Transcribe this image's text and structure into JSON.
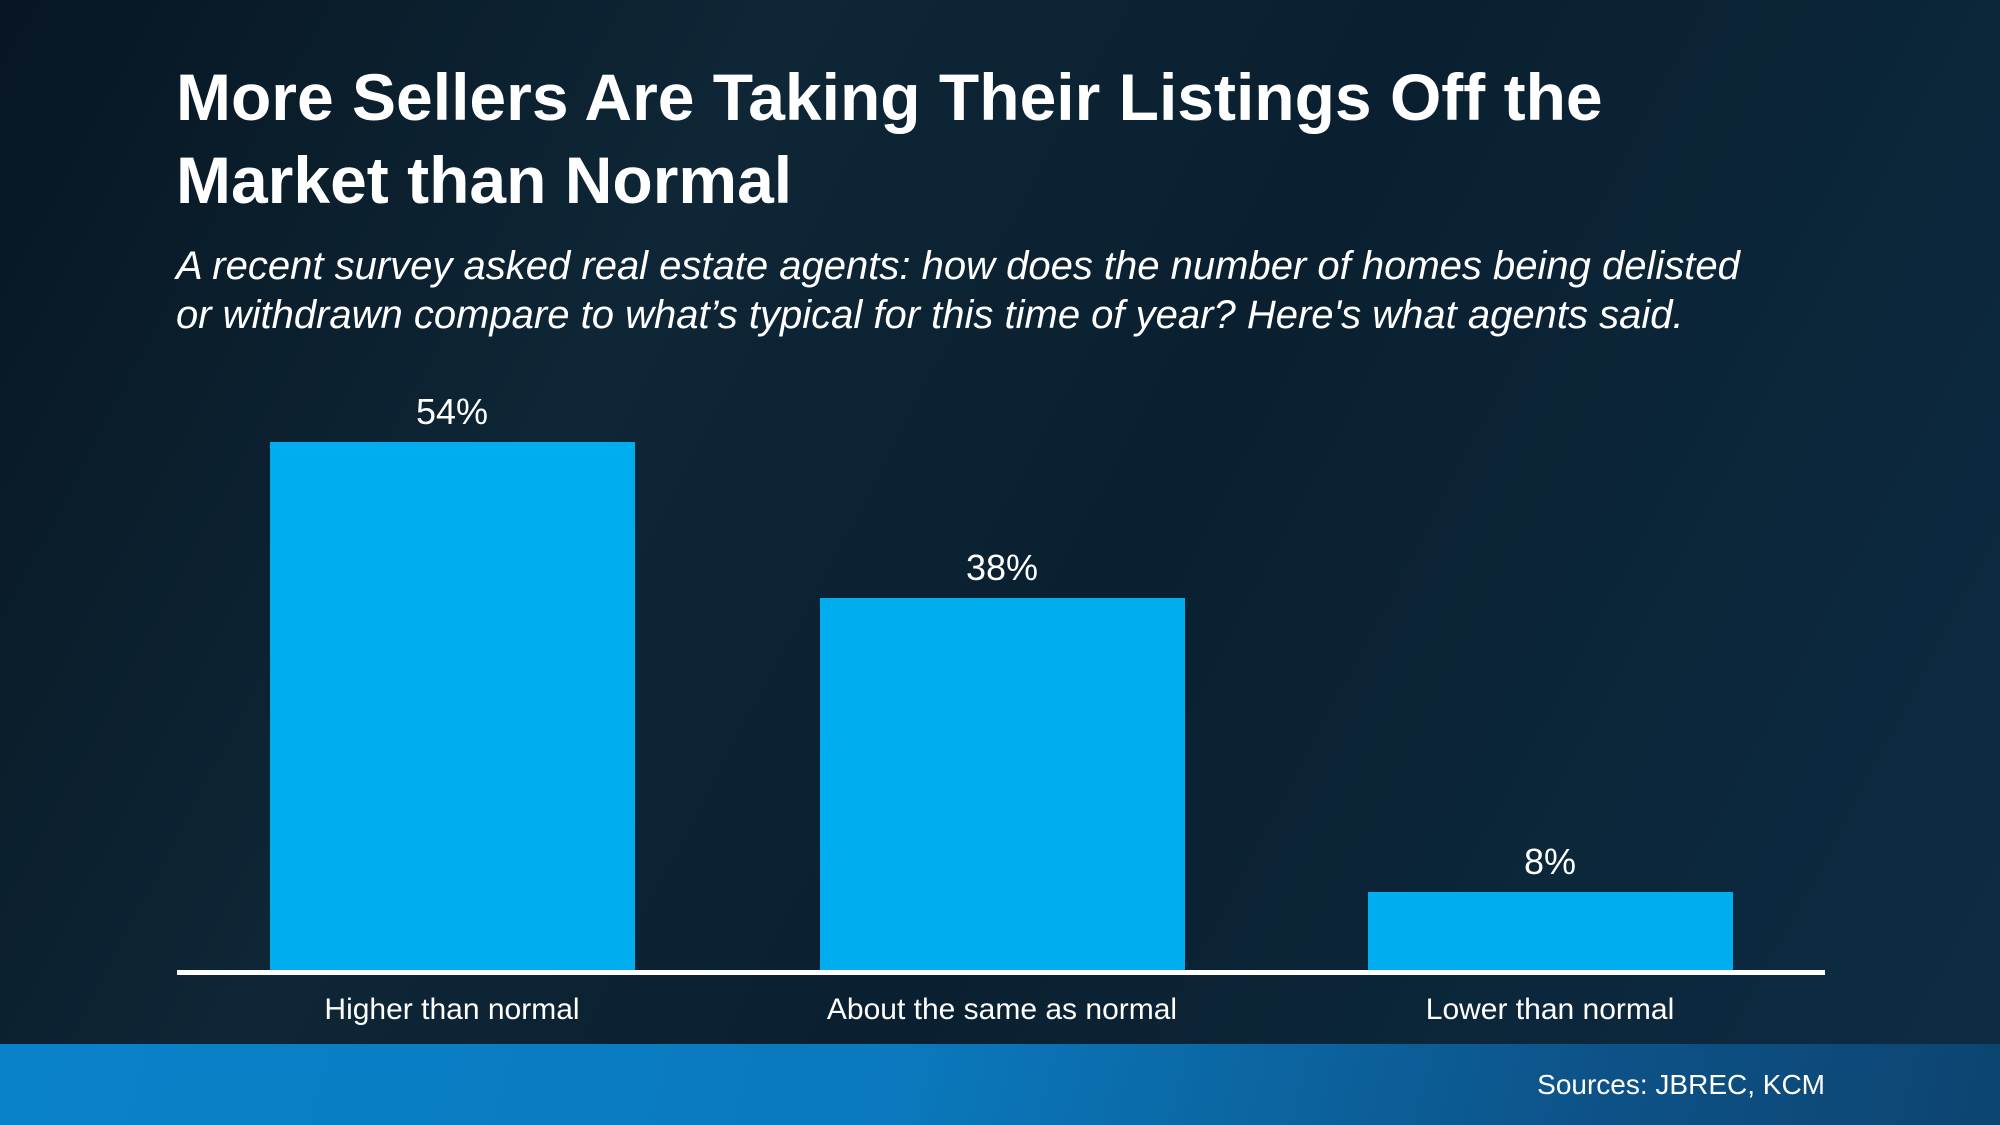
{
  "header": {
    "title": "More Sellers Are Taking Their Listings Off the Market than Normal",
    "title_lines": [
      "More Sellers Are Taking Their Listings Off the",
      "Market than Normal"
    ],
    "subtitle": "A recent survey asked real estate agents: how does the number of homes being delisted or withdrawn compare to what’s typical for this time of year? Here's what agents said.",
    "subtitle_lines": [
      "A recent survey asked real estate agents: how does the number of homes being delisted",
      "or withdrawn compare to what’s typical for this time of year? Here's what agents said."
    ]
  },
  "footer": {
    "source_label": "Sources: JBREC, KCM"
  },
  "colors": {
    "background_top": "#071622",
    "background_bottom": "#0D2C44",
    "text": "#FFFFFF",
    "axis": "#FFFFFF",
    "bar": "#00AEEF",
    "footer_left": "#0A82CA",
    "footer_right": "#0D4470"
  },
  "chart_data": {
    "type": "bar",
    "title": "More Sellers Are Taking Their Listings Off the Market than Normal",
    "categories": [
      "Higher than normal",
      "About the same as normal",
      "Lower than normal"
    ],
    "values": [
      54,
      38,
      8
    ],
    "value_labels": [
      "54%",
      "38%",
      "8%"
    ],
    "xlabel": "",
    "ylabel": "",
    "ylim": [
      0,
      55
    ],
    "unit": "percent",
    "grid": false,
    "legend": false,
    "bar_color": "#00AEEF"
  }
}
